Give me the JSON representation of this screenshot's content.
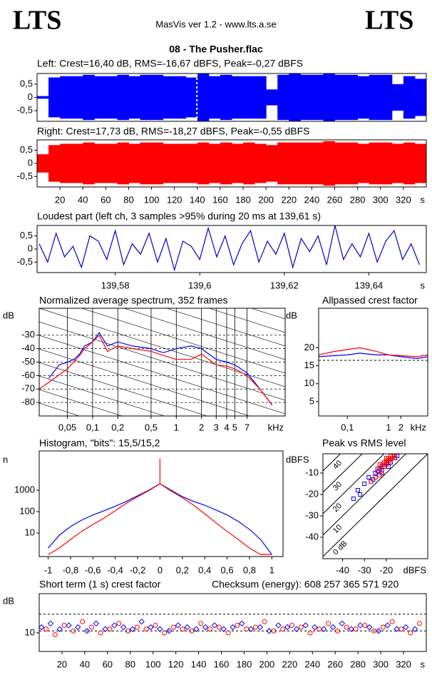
{
  "header": {
    "logo_left": "LTS",
    "logo_right": "LTS",
    "app": "MasVis ver 1.2 - www.lts.a.se",
    "file": "08 - The Pusher.flac"
  },
  "chart_data": [
    {
      "type": "area",
      "title": "Left: Crest=16,40 dB, RMS=-16,67 dBFS, Peak=-0,27 dBFS",
      "color": "#0000ff",
      "x": [
        0,
        10,
        20,
        30,
        40,
        50,
        60,
        70,
        80,
        90,
        100,
        110,
        120,
        130,
        140,
        150,
        160,
        170,
        180,
        190,
        200,
        210,
        220,
        230,
        240,
        250,
        260,
        270,
        280,
        290,
        300,
        310,
        320,
        330
      ],
      "values": [
        0.05,
        0.75,
        0.8,
        0.8,
        0.85,
        0.8,
        0.8,
        0.85,
        0.8,
        0.85,
        0.85,
        0.8,
        0.8,
        0.75,
        0.9,
        0.8,
        0.85,
        0.8,
        0.8,
        0.8,
        0.3,
        0.85,
        0.9,
        0.85,
        0.85,
        0.9,
        0.85,
        0.85,
        0.8,
        0.85,
        0.85,
        0.5,
        0.8,
        0.7
      ],
      "xlim": [
        0,
        340
      ],
      "ylim": [
        -0.9,
        0.9
      ],
      "yticks": [
        {
          "value": 0.5,
          "label": "0,5"
        },
        0,
        {
          "value": -0.5,
          "label": "-0,5"
        }
      ],
      "marker_x": 139.61
    },
    {
      "type": "area",
      "title": "Right: Crest=17,73 dB, RMS=-18,27 dBFS, Peak=-0,55 dBFS",
      "color": "#ff0000",
      "x": [
        0,
        10,
        20,
        30,
        40,
        50,
        60,
        70,
        80,
        90,
        100,
        110,
        120,
        130,
        140,
        150,
        160,
        170,
        180,
        190,
        200,
        210,
        220,
        230,
        240,
        250,
        260,
        270,
        280,
        290,
        300,
        310,
        320,
        330
      ],
      "values": [
        0.35,
        0.7,
        0.75,
        0.75,
        0.8,
        0.75,
        0.75,
        0.8,
        0.75,
        0.8,
        0.8,
        0.75,
        0.75,
        0.75,
        0.8,
        0.75,
        0.8,
        0.75,
        0.8,
        0.75,
        0.7,
        0.8,
        0.8,
        0.8,
        0.8,
        0.85,
        0.8,
        0.8,
        0.75,
        0.8,
        0.8,
        0.75,
        0.8,
        0.75
      ],
      "xlim": [
        0,
        340
      ],
      "ylim": [
        -0.9,
        0.9
      ],
      "yticks": [
        {
          "value": 0.5,
          "label": "0,5"
        },
        0,
        {
          "value": -0.5,
          "label": "-0,5"
        }
      ],
      "xticks": [
        20,
        40,
        60,
        80,
        100,
        120,
        140,
        160,
        180,
        200,
        220,
        240,
        260,
        280,
        300,
        320
      ],
      "xlabel": "s"
    },
    {
      "type": "line",
      "title": "Loudest part (left  ch, 3 samples >95% during 20 ms at 139,61 s)",
      "color": "#0000cc",
      "x": [
        139.562,
        139.564,
        139.566,
        139.568,
        139.57,
        139.572,
        139.574,
        139.576,
        139.578,
        139.58,
        139.582,
        139.584,
        139.586,
        139.588,
        139.59,
        139.592,
        139.594,
        139.596,
        139.598,
        139.6,
        139.602,
        139.604,
        139.606,
        139.608,
        139.61,
        139.612,
        139.614,
        139.616,
        139.618,
        139.62,
        139.622,
        139.624,
        139.626,
        139.628,
        139.63,
        139.632,
        139.634,
        139.636,
        139.638,
        139.64,
        139.642,
        139.644,
        139.646,
        139.648,
        139.65,
        139.652
      ],
      "values": [
        0.2,
        -0.5,
        0.6,
        -0.3,
        0.1,
        -0.7,
        0.5,
        0.3,
        -0.4,
        0.7,
        -0.6,
        0.2,
        -0.2,
        0.6,
        -0.5,
        0.4,
        -0.8,
        0.3,
        0.1,
        -0.4,
        0.8,
        -0.3,
        0.5,
        -0.6,
        0.2,
        0.7,
        -0.5,
        0.3,
        -0.2,
        0.6,
        -0.7,
        0.4,
        -0.1,
        0.5,
        -0.6,
        0.9,
        -0.4,
        0.2,
        -0.3,
        0.6,
        -0.5,
        0.3,
        0.7,
        -0.4,
        0.2,
        -0.6
      ],
      "xlim": [
        139.5615,
        139.6536
      ],
      "ylim": [
        -0.9,
        0.9
      ],
      "yticks": [
        {
          "value": 0.5,
          "label": "0,5"
        },
        0,
        {
          "value": -0.5,
          "label": "-0,5"
        }
      ],
      "xticks": [
        {
          "value": 139.58,
          "label": "139,58"
        },
        {
          "value": 139.6,
          "label": "139,6"
        },
        {
          "value": 139.62,
          "label": "139,62"
        },
        {
          "value": 139.64,
          "label": "139,64"
        }
      ],
      "xlabel": "s"
    },
    {
      "type": "line",
      "title": "Normalized average spectrum, 352 frames",
      "ylabel": "dB",
      "xlog": true,
      "grid": true,
      "series": [
        {
          "color": "#0000ff",
          "x": [
            0.03,
            0.04,
            0.05,
            0.06,
            0.07,
            0.08,
            0.1,
            0.12,
            0.15,
            0.2,
            0.3,
            0.5,
            0.7,
            1,
            1.5,
            2,
            3,
            4,
            5,
            7,
            10,
            14
          ],
          "values": [
            -62,
            -52,
            -50,
            -48,
            -44,
            -38,
            -35,
            -28,
            -38,
            -35,
            -38,
            -40,
            -43,
            -40,
            -38,
            -40,
            -48,
            -50,
            -52,
            -58,
            -70,
            -82
          ]
        },
        {
          "color": "#ff0000",
          "x": [
            0.023,
            0.03,
            0.05,
            0.07,
            0.08,
            0.1,
            0.12,
            0.15,
            0.2,
            0.3,
            0.5,
            0.7,
            1,
            1.5,
            2,
            3,
            4,
            5,
            7,
            10,
            14
          ],
          "values": [
            -70,
            -65,
            -55,
            -45,
            -40,
            -35,
            -30,
            -42,
            -38,
            -40,
            -42,
            -45,
            -48,
            -48,
            -44,
            -52,
            -53,
            -55,
            -60,
            -70,
            -82
          ]
        }
      ],
      "xlim": [
        0.023,
        20
      ],
      "ylim": [
        -90,
        -10
      ],
      "yticks": [
        -30,
        -40,
        -50,
        -60,
        -70,
        -80
      ],
      "xticks": [
        {
          "value": 0.05,
          "label": "0,05"
        },
        {
          "value": 0.1,
          "label": "0,1"
        },
        {
          "value": 0.2,
          "label": "0,2"
        },
        {
          "value": 0.5,
          "label": "0,5"
        },
        1,
        2,
        3,
        4,
        5,
        7
      ],
      "xlabel": "kHz"
    },
    {
      "type": "line",
      "title": "Allpassed crest factor",
      "ylabel": "dB",
      "xlog": true,
      "series": [
        {
          "color": "#0000ff",
          "x": [
            0.02,
            0.05,
            0.1,
            0.2,
            0.5,
            1,
            2,
            5,
            9
          ],
          "values": [
            17.5,
            17.8,
            18,
            18.5,
            18,
            18,
            17.5,
            17,
            17.5
          ]
        },
        {
          "color": "#ff0000",
          "x": [
            0.02,
            0.05,
            0.1,
            0.2,
            0.5,
            1,
            2,
            5,
            9
          ],
          "values": [
            18,
            19,
            19.5,
            20,
            19,
            18,
            17.8,
            17.5,
            18
          ]
        }
      ],
      "xlim": [
        0.02,
        9
      ],
      "ylim": [
        1,
        31
      ],
      "yticks": [
        20,
        15,
        10,
        5
      ],
      "xticks": [
        {
          "value": 0.1,
          "label": "0,1"
        },
        1,
        2
      ],
      "xlabel": "kHz",
      "ref_lines": [
        16.5
      ]
    },
    {
      "type": "line",
      "title": "Histogram, \"bits\": 15,5/15,2",
      "ylabel": "n",
      "ylog": true,
      "series": [
        {
          "color": "#0000ff",
          "x": [
            -1,
            -0.9,
            -0.8,
            -0.7,
            -0.6,
            -0.5,
            -0.4,
            -0.3,
            -0.2,
            -0.1,
            0,
            0.1,
            0.2,
            0.3,
            0.4,
            0.5,
            0.6,
            0.7,
            0.8,
            0.9,
            1
          ],
          "values": [
            2,
            8,
            20,
            40,
            70,
            110,
            180,
            300,
            550,
            1000,
            2000,
            1000,
            500,
            300,
            200,
            120,
            70,
            35,
            15,
            5,
            1
          ]
        },
        {
          "color": "#ff0000",
          "x": [
            -1,
            -0.9,
            -0.8,
            -0.7,
            -0.6,
            -0.5,
            -0.4,
            -0.3,
            -0.2,
            -0.1,
            0,
            0,
            0,
            0.1,
            0.2,
            0.3,
            0.4,
            0.5,
            0.6,
            0.7,
            0.8,
            0.9,
            1
          ],
          "values": [
            1,
            2,
            5,
            12,
            25,
            50,
            110,
            250,
            500,
            950,
            2000,
            30000,
            2000,
            900,
            450,
            200,
            80,
            30,
            12,
            5,
            2,
            1,
            1
          ]
        }
      ],
      "xlim": [
        -1.08,
        1.1
      ],
      "ylim": [
        0.8,
        68000
      ],
      "yticks": [
        10,
        100,
        1000
      ],
      "xticks": [
        -1,
        {
          "value": -0.8,
          "label": "-0,8"
        },
        {
          "value": -0.6,
          "label": "-0,6"
        },
        {
          "value": -0.4,
          "label": "-0,4"
        },
        {
          "value": -0.2,
          "label": "-0,2"
        },
        0,
        {
          "value": 0.2,
          "label": "0,2"
        },
        {
          "value": 0.4,
          "label": "0,4"
        },
        {
          "value": 0.6,
          "label": "0,6"
        },
        {
          "value": 0.8,
          "label": "0,8"
        },
        1
      ]
    },
    {
      "type": "scatter",
      "title": "Peak vs RMS level",
      "ylabel": "dBFS",
      "xlabel": "dBFS",
      "series": [
        {
          "color": "#0000ff",
          "marker": "square",
          "x": [
            -30,
            -28,
            -27,
            -25,
            -24,
            -23,
            -22,
            -21,
            -20,
            -19,
            -18,
            -17,
            -33,
            -35,
            -32,
            -26,
            -22,
            -19,
            -16,
            -15
          ],
          "values": [
            -15,
            -12,
            -14,
            -10,
            -9,
            -8,
            -7,
            -6,
            -5,
            -4,
            -5,
            -3,
            -18,
            -22,
            -20,
            -13,
            -10,
            -7,
            -3,
            -2
          ]
        },
        {
          "color": "#ff0000",
          "marker": "square",
          "x": [
            -24,
            -23,
            -22,
            -21,
            -20,
            -19,
            -18,
            -17,
            -16,
            -21,
            -20,
            -19,
            -18,
            -17,
            -16,
            -22,
            -23,
            -25,
            -27,
            -20
          ],
          "values": [
            -8,
            -6,
            -6,
            -5,
            -4,
            -3,
            -2,
            -2,
            -1.5,
            -7,
            -6,
            -5,
            -4,
            -3,
            -2,
            -9,
            -11,
            -12,
            -14,
            -3
          ]
        }
      ],
      "xlim": [
        -49,
        -1
      ],
      "ylim": [
        -50,
        -1
      ],
      "yticks": [
        -10,
        -20,
        -30,
        -40
      ],
      "xticks": [
        -40,
        -30,
        -20
      ],
      "diagonals": [
        {
          "value": 40,
          "label": "40"
        },
        {
          "value": 30,
          "label": "30"
        },
        {
          "value": 20,
          "label": "20"
        },
        {
          "value": 10,
          "label": "10"
        },
        {
          "value": 0,
          "label": "0 dB"
        }
      ]
    },
    {
      "type": "scatter",
      "title": "Short term (1 s) crest factor",
      "annotation": "Checksum (energy):  608 257 365 571 920",
      "ylabel": "dB",
      "xlabel": "s",
      "series": [
        {
          "color": "#0000ff",
          "marker": "diamond",
          "x": [
            2,
            10,
            18,
            26,
            34,
            42,
            50,
            58,
            66,
            74,
            82,
            90,
            98,
            106,
            114,
            122,
            130,
            138,
            146,
            154,
            162,
            170,
            178,
            186,
            194,
            202,
            210,
            218,
            226,
            234,
            242,
            250,
            258,
            266,
            274,
            282,
            290,
            298,
            306,
            314,
            322,
            330
          ],
          "values": [
            13,
            15,
            12,
            14,
            13,
            11,
            15,
            12,
            14,
            13,
            12,
            16,
            13,
            12,
            11,
            14,
            13,
            12,
            13,
            14,
            12,
            13,
            15,
            12,
            13,
            11,
            14,
            13,
            12,
            14,
            13,
            12,
            13,
            15,
            12,
            14,
            13,
            11,
            14,
            12,
            13,
            12
          ]
        },
        {
          "color": "#ff0000",
          "marker": "circle",
          "x": [
            6,
            14,
            22,
            30,
            38,
            46,
            54,
            62,
            70,
            78,
            86,
            94,
            102,
            110,
            118,
            126,
            134,
            142,
            150,
            158,
            166,
            174,
            182,
            190,
            198,
            206,
            214,
            222,
            230,
            238,
            246,
            254,
            262,
            270,
            278,
            286,
            294,
            302,
            310,
            318,
            326,
            334
          ],
          "values": [
            12,
            9,
            14,
            11,
            16,
            13,
            10,
            12,
            15,
            11,
            13,
            12,
            14,
            10,
            13,
            12,
            11,
            15,
            12,
            13,
            10,
            14,
            12,
            13,
            16,
            11,
            12,
            14,
            13,
            10,
            12,
            15,
            11,
            13,
            12,
            14,
            11,
            13,
            16,
            12,
            10,
            15
          ]
        }
      ],
      "xlim": [
        0,
        340
      ],
      "ylim": [
        0,
        31
      ],
      "yticks": [
        10
      ],
      "xticks": [
        20,
        40,
        60,
        80,
        100,
        120,
        140,
        160,
        180,
        200,
        220,
        240,
        260,
        280,
        300,
        320
      ],
      "ref_lines": [
        20,
        11
      ]
    }
  ]
}
